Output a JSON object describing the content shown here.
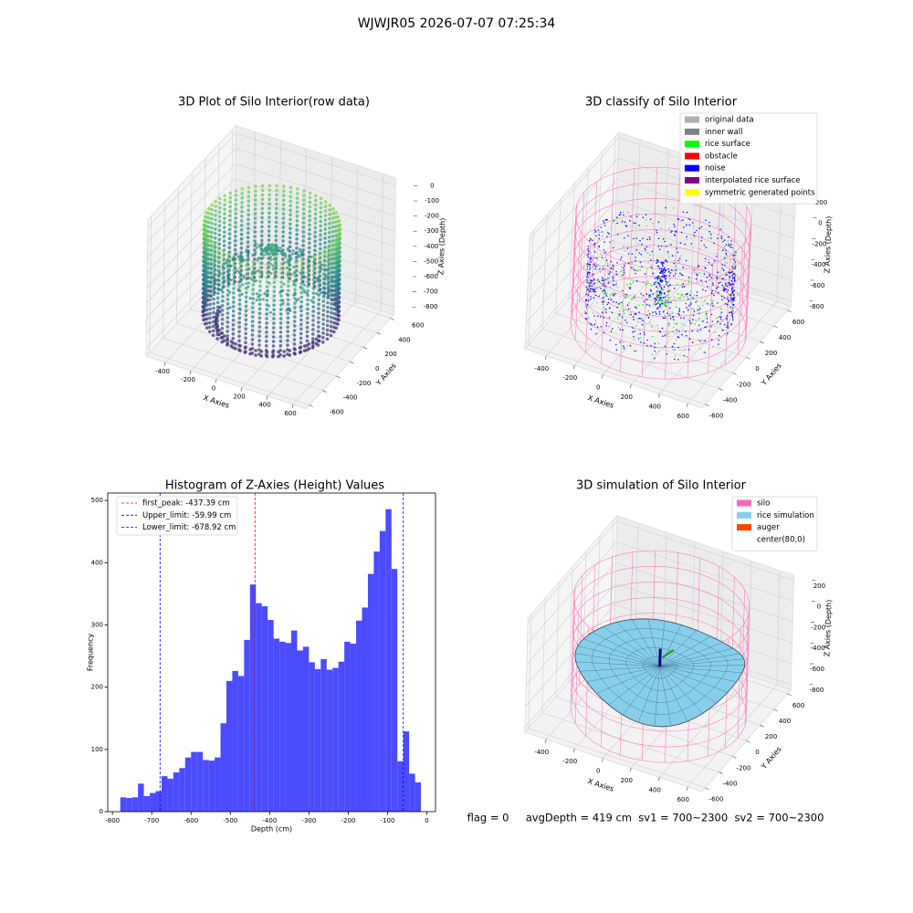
{
  "title": "WJWJR05 2026-07-07 07:25:34",
  "footer": "flag = 0     avgDepth = 419 cm  sv1 = 700~2300  sv2 = 700~2300",
  "chart_data": [
    {
      "type": "scatter3d",
      "title": "3D Plot of Silo Interior(row data)",
      "xlabel": "X Axies",
      "ylabel": "Y Axies",
      "zlabel": "Z Axies (Depth)",
      "xlim": [
        -550,
        700
      ],
      "ylim": [
        -650,
        650
      ],
      "zlim": [
        -850,
        50
      ],
      "xticks": [
        -400,
        -200,
        0,
        200,
        400,
        600
      ],
      "yticks": [
        -600,
        -400,
        -200,
        0,
        200,
        400,
        600
      ],
      "zticks": [
        0,
        -100,
        -200,
        -300,
        -400,
        -500,
        -600,
        -700,
        -800
      ],
      "colormap": "viridis",
      "grid": true
    },
    {
      "type": "classify3d",
      "title": "3D classify of Silo Interior",
      "xlabel": "X Axies",
      "ylabel": "Y Axies",
      "zlabel": "Z Axies (Depth)",
      "xlim": [
        -550,
        700
      ],
      "ylim": [
        -650,
        650
      ],
      "zlim": [
        -850,
        250
      ],
      "xticks": [
        -400,
        -200,
        0,
        200,
        400,
        600
      ],
      "yticks": [
        -600,
        -400,
        -200,
        0,
        200,
        400,
        600
      ],
      "zticks": [
        200,
        0,
        -200,
        -400,
        -600,
        -800
      ],
      "grid": true,
      "legend": [
        {
          "name": "original data",
          "color": "#b0b0b0"
        },
        {
          "name": "inner wall",
          "color": "#808080"
        },
        {
          "name": "rice surface",
          "color": "#00ff00"
        },
        {
          "name": "obstacle",
          "color": "#ff0000"
        },
        {
          "name": "noise",
          "color": "#0000ff"
        },
        {
          "name": "interpolated rice surface",
          "color": "#800080"
        },
        {
          "name": "symmetric generated points",
          "color": "#ffff00"
        }
      ]
    },
    {
      "type": "histogram",
      "title": "Histogram of Z-Axies (Height) Values",
      "xlabel": "Depth (cm)",
      "ylabel": "Frequency",
      "color": "#4b4bff",
      "xlim": [
        -812,
        22
      ],
      "ylim": [
        0,
        512
      ],
      "xticks": [
        -800,
        -700,
        -600,
        -500,
        -400,
        -300,
        -200,
        -100,
        0
      ],
      "yticks": [
        0,
        100,
        200,
        300,
        400,
        500
      ],
      "bins": [
        -780,
        -765,
        -750,
        -735,
        -720,
        -705,
        -690,
        -675,
        -660,
        -645,
        -630,
        -615,
        -600,
        -585,
        -570,
        -555,
        -540,
        -525,
        -510,
        -495,
        -480,
        -465,
        -450,
        -435,
        -420,
        -405,
        -390,
        -375,
        -360,
        -345,
        -330,
        -315,
        -300,
        -285,
        -270,
        -255,
        -240,
        -225,
        -210,
        -195,
        -180,
        -165,
        -150,
        -135,
        -120,
        -105,
        -90,
        -75,
        -60,
        -45,
        -30,
        -15
      ],
      "counts": [
        23,
        22,
        23,
        45,
        25,
        30,
        33,
        57,
        53,
        63,
        70,
        87,
        96,
        96,
        83,
        82,
        87,
        142,
        210,
        226,
        218,
        276,
        365,
        335,
        330,
        308,
        278,
        273,
        271,
        291,
        259,
        265,
        240,
        229,
        245,
        228,
        231,
        241,
        273,
        270,
        307,
        328,
        382,
        418,
        451,
        486,
        390,
        81,
        129,
        61,
        47
      ],
      "vlines": [
        {
          "label": "first_peak: -437.39 cm",
          "value": -437.39,
          "color": "#ff0000"
        },
        {
          "label": "Upper_limit: -59.99 cm",
          "value": -59.99,
          "color": "#0000ff"
        },
        {
          "label": "Lower_limit: -678.92 cm",
          "value": -678.92,
          "color": "#0000ff"
        }
      ]
    },
    {
      "type": "surface3d",
      "title": "3D simulation of Silo Interior",
      "xlabel": "X Axies",
      "ylabel": "Y Axies",
      "zlabel": "Z Axies (Depth)",
      "xlim": [
        -550,
        700
      ],
      "ylim": [
        -650,
        650
      ],
      "zlim": [
        -850,
        250
      ],
      "xticks": [
        -400,
        -200,
        0,
        200,
        400,
        600
      ],
      "yticks": [
        -600,
        -400,
        -200,
        0,
        200,
        400,
        600
      ],
      "zticks": [
        200,
        0,
        -200,
        -400,
        -600,
        -800
      ],
      "grid": true,
      "legend": [
        {
          "name": "silo",
          "color": "#ff69b4"
        },
        {
          "name": "rice simulation",
          "color": "#87ceeb"
        },
        {
          "name": "auger",
          "color": "#ff4500"
        },
        {
          "name": "center(80,0)",
          "color": "#ffffff"
        }
      ]
    }
  ]
}
